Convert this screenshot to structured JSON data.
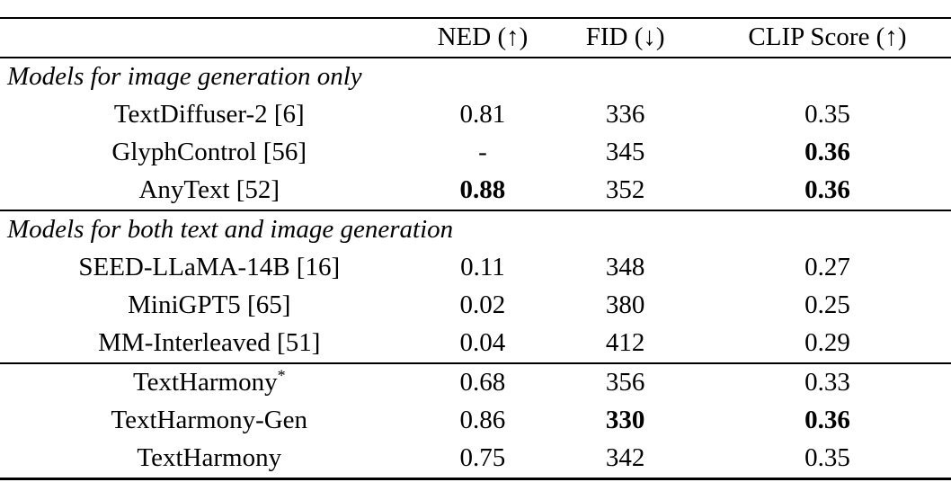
{
  "page": {
    "background_color": "#ffffff",
    "text_color": "#000000"
  },
  "chart_data": {
    "type": "table",
    "columns": [
      "",
      "NED (↑)",
      "FID (↓)",
      "CLIP Score (↑)"
    ],
    "sections": [
      {
        "header": "Models for image generation only",
        "rows": [
          {
            "model": "TextDiffuser-2 [6]",
            "ned": "0.81",
            "fid": "336",
            "clip": "0.35",
            "bold": []
          },
          {
            "model": "GlyphControl [56]",
            "ned": "-",
            "fid": "345",
            "clip": "0.36",
            "bold": [
              "clip"
            ]
          },
          {
            "model": "AnyText [52]",
            "ned": "0.88",
            "fid": "352",
            "clip": "0.36",
            "bold": [
              "ned",
              "clip"
            ]
          }
        ]
      },
      {
        "header": "Models for both text and image generation",
        "rows": [
          {
            "model": "SEED-LLaMA-14B [16]",
            "ned": "0.11",
            "fid": "348",
            "clip": "0.27",
            "bold": []
          },
          {
            "model": "MiniGPT5 [65]",
            "ned": "0.02",
            "fid": "380",
            "clip": "0.25",
            "bold": []
          },
          {
            "model": "MM-Interleaved [51]",
            "ned": "0.04",
            "fid": "412",
            "clip": "0.29",
            "bold": []
          }
        ]
      },
      {
        "header": null,
        "rows": [
          {
            "model": "TextHarmony",
            "superscript": "*",
            "ned": "0.68",
            "fid": "356",
            "clip": "0.33",
            "bold": []
          },
          {
            "model": "TextHarmony-Gen",
            "ned": "0.86",
            "fid": "330",
            "clip": "0.36",
            "bold": [
              "fid",
              "clip"
            ]
          },
          {
            "model": "TextHarmony",
            "ned": "0.75",
            "fid": "342",
            "clip": "0.35",
            "bold": []
          }
        ]
      }
    ]
  }
}
